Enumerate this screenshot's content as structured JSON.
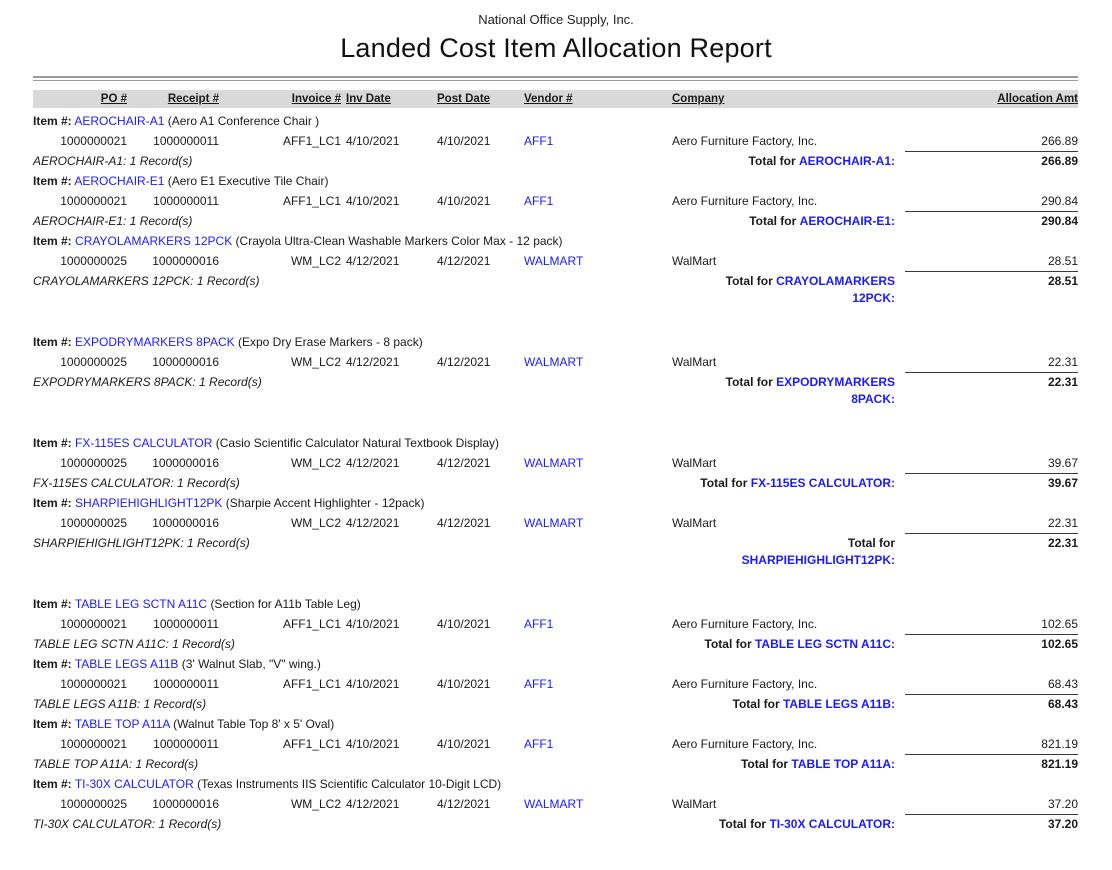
{
  "report": {
    "company": "National Office Supply, Inc.",
    "title": "Landed Cost Item Allocation Report"
  },
  "colors": {
    "accent_blue": "#1a1aff",
    "header_band": "#d9d9d9"
  },
  "item_label": "Item #:",
  "columns": {
    "po": "PO #",
    "receipt": "Receipt #",
    "invoice": "Invoice #",
    "inv_date": "Inv Date",
    "post_date": "Post Date",
    "vendor": "Vendor #",
    "company": "Company",
    "amount": "Allocation Amt"
  },
  "groups": [
    {
      "code": "AEROCHAIR-A1",
      "description": "(Aero A1 Conference Chair )",
      "rows": [
        {
          "po": "1000000021",
          "receipt": "1000000011",
          "invoice": "AFF1_LC1",
          "inv_date": "4/10/2021",
          "post_date": "4/10/2021",
          "vendor": "AFF1",
          "company": "Aero Furniture Factory, Inc.",
          "amount": "266.89"
        }
      ],
      "record_line": "AEROCHAIR-A1: 1 Record(s)",
      "total": {
        "prefix": "Total for",
        "item_line1": "AEROCHAIR-A1:",
        "item_line2": "",
        "amount": "266.89"
      }
    },
    {
      "code": "AEROCHAIR-E1",
      "description": "(Aero E1 Executive Tile Chair)",
      "rows": [
        {
          "po": "1000000021",
          "receipt": "1000000011",
          "invoice": "AFF1_LC1",
          "inv_date": "4/10/2021",
          "post_date": "4/10/2021",
          "vendor": "AFF1",
          "company": "Aero Furniture Factory, Inc.",
          "amount": "290.84"
        }
      ],
      "record_line": "AEROCHAIR-E1: 1 Record(s)",
      "total": {
        "prefix": "Total for",
        "item_line1": "AEROCHAIR-E1:",
        "item_line2": "",
        "amount": "290.84"
      }
    },
    {
      "code": "CRAYOLAMARKERS 12PCK",
      "description": "(Crayola Ultra-Clean Washable Markers Color Max - 12 pack)",
      "rows": [
        {
          "po": "1000000025",
          "receipt": "1000000016",
          "invoice": "WM_LC2",
          "inv_date": "4/12/2021",
          "post_date": "4/12/2021",
          "vendor": "WALMART",
          "company": "WalMart",
          "amount": "28.51"
        }
      ],
      "record_line": "CRAYOLAMARKERS 12PCK: 1 Record(s)",
      "total": {
        "prefix": "Total for",
        "item_line1": "CRAYOLAMARKERS",
        "item_line2": "12PCK:",
        "amount": "28.51"
      }
    },
    {
      "code": "EXPODRYMARKERS 8PACK",
      "description": "(Expo Dry Erase Markers - 8 pack)",
      "rows": [
        {
          "po": "1000000025",
          "receipt": "1000000016",
          "invoice": "WM_LC2",
          "inv_date": "4/12/2021",
          "post_date": "4/12/2021",
          "vendor": "WALMART",
          "company": "WalMart",
          "amount": "22.31"
        }
      ],
      "record_line": "EXPODRYMARKERS 8PACK: 1 Record(s)",
      "total": {
        "prefix": "Total for",
        "item_line1": "EXPODRYMARKERS",
        "item_line2": "8PACK:",
        "amount": "22.31"
      }
    },
    {
      "code": "FX-115ES CALCULATOR",
      "description": "(Casio Scientific Calculator Natural Textbook Display)",
      "rows": [
        {
          "po": "1000000025",
          "receipt": "1000000016",
          "invoice": "WM_LC2",
          "inv_date": "4/12/2021",
          "post_date": "4/12/2021",
          "vendor": "WALMART",
          "company": "WalMart",
          "amount": "39.67"
        }
      ],
      "record_line": "FX-115ES CALCULATOR: 1 Record(s)",
      "total": {
        "prefix": "Total for",
        "item_line1": "FX-115ES CALCULATOR:",
        "item_line2": "",
        "amount": "39.67"
      }
    },
    {
      "code": "SHARPIEHIGHLIGHT12PK",
      "description": "(Sharpie Accent Highlighter - 12pack)",
      "rows": [
        {
          "po": "1000000025",
          "receipt": "1000000016",
          "invoice": "WM_LC2",
          "inv_date": "4/12/2021",
          "post_date": "4/12/2021",
          "vendor": "WALMART",
          "company": "WalMart",
          "amount": "22.31"
        }
      ],
      "record_line": "SHARPIEHIGHLIGHT12PK: 1 Record(s)",
      "total": {
        "prefix": "Total for",
        "item_line1": "",
        "item_line2": "SHARPIEHIGHLIGHT12PK:",
        "amount": "22.31"
      }
    },
    {
      "code": "TABLE LEG SCTN A11C",
      "description": "(Section for A11b Table Leg)",
      "rows": [
        {
          "po": "1000000021",
          "receipt": "1000000011",
          "invoice": "AFF1_LC1",
          "inv_date": "4/10/2021",
          "post_date": "4/10/2021",
          "vendor": "AFF1",
          "company": "Aero Furniture Factory, Inc.",
          "amount": "102.65"
        }
      ],
      "record_line": "TABLE LEG SCTN A11C: 1 Record(s)",
      "total": {
        "prefix": "Total for",
        "item_line1": "TABLE LEG SCTN A11C:",
        "item_line2": "",
        "amount": "102.65"
      }
    },
    {
      "code": "TABLE LEGS A11B",
      "description": "(3' Walnut Slab, \"V\" wing.)",
      "rows": [
        {
          "po": "1000000021",
          "receipt": "1000000011",
          "invoice": "AFF1_LC1",
          "inv_date": "4/10/2021",
          "post_date": "4/10/2021",
          "vendor": "AFF1",
          "company": "Aero Furniture Factory, Inc.",
          "amount": "68.43"
        }
      ],
      "record_line": "TABLE LEGS A11B: 1 Record(s)",
      "total": {
        "prefix": "Total for",
        "item_line1": "TABLE LEGS A11B:",
        "item_line2": "",
        "amount": "68.43"
      }
    },
    {
      "code": "TABLE TOP A11A",
      "description": "(Walnut Table Top 8' x 5' Oval)",
      "rows": [
        {
          "po": "1000000021",
          "receipt": "1000000011",
          "invoice": "AFF1_LC1",
          "inv_date": "4/10/2021",
          "post_date": "4/10/2021",
          "vendor": "AFF1",
          "company": "Aero Furniture Factory, Inc.",
          "amount": "821.19"
        }
      ],
      "record_line": "TABLE TOP A11A: 1 Record(s)",
      "total": {
        "prefix": "Total for",
        "item_line1": "TABLE TOP A11A:",
        "item_line2": "",
        "amount": "821.19"
      }
    },
    {
      "code": "TI-30X CALCULATOR",
      "description": "(Texas Instruments IIS Scientific Calculator 10-Digit LCD)",
      "rows": [
        {
          "po": "1000000025",
          "receipt": "1000000016",
          "invoice": "WM_LC2",
          "inv_date": "4/12/2021",
          "post_date": "4/12/2021",
          "vendor": "WALMART",
          "company": "WalMart",
          "amount": "37.20"
        }
      ],
      "record_line": "TI-30X CALCULATOR: 1 Record(s)",
      "total": {
        "prefix": "Total for",
        "item_line1": "TI-30X CALCULATOR:",
        "item_line2": "",
        "amount": "37.20"
      }
    }
  ]
}
